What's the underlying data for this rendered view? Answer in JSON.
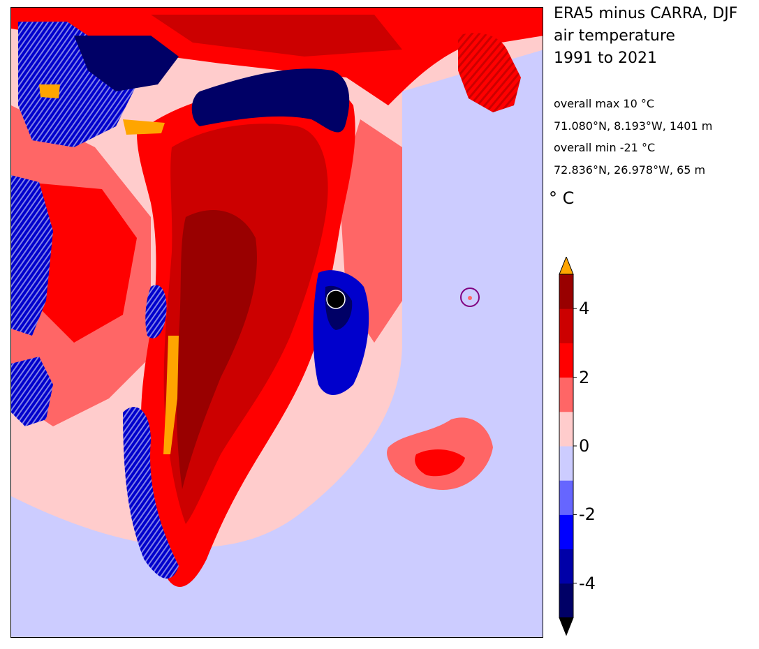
{
  "title": {
    "line1": "ERA5 minus CARRA, DJF",
    "line2": "air temperature",
    "line3": "1991 to 2021"
  },
  "stats": {
    "max_label": "overall max 10 °C",
    "max_location": "71.080°N, 8.193°W, 1401 m",
    "min_label": "overall min -21 °C",
    "min_location": "72.836°N, 26.978°W, 65 m"
  },
  "colorbar": {
    "unit": "° C",
    "levels": [
      -5,
      -4,
      -3,
      -2,
      -1,
      0,
      1,
      2,
      3,
      4,
      5
    ],
    "colors": [
      "#000066",
      "#0000a8",
      "#0000ff",
      "#6666ff",
      "#ccccff",
      "#ffcccc",
      "#ff6666",
      "#ff0000",
      "#cc0000",
      "#990000"
    ],
    "extend_low_color": "#000000",
    "extend_high_color": "#ffa500",
    "ticks": [
      {
        "label": "4",
        "value": 4
      },
      {
        "label": "2",
        "value": 2
      },
      {
        "label": "0",
        "value": 0
      },
      {
        "label": "-2",
        "value": -2
      },
      {
        "label": "-4",
        "value": -4
      }
    ]
  },
  "map": {
    "background_color": "#ffcccc",
    "ocean_south_color": "#ccccff",
    "markers": [
      {
        "name": "min-marker",
        "meaning": "overall min",
        "fill": "#000000",
        "stroke": "#ffffff"
      },
      {
        "name": "max-marker",
        "meaning": "overall max",
        "fill": "none",
        "stroke": "#800080"
      }
    ]
  }
}
